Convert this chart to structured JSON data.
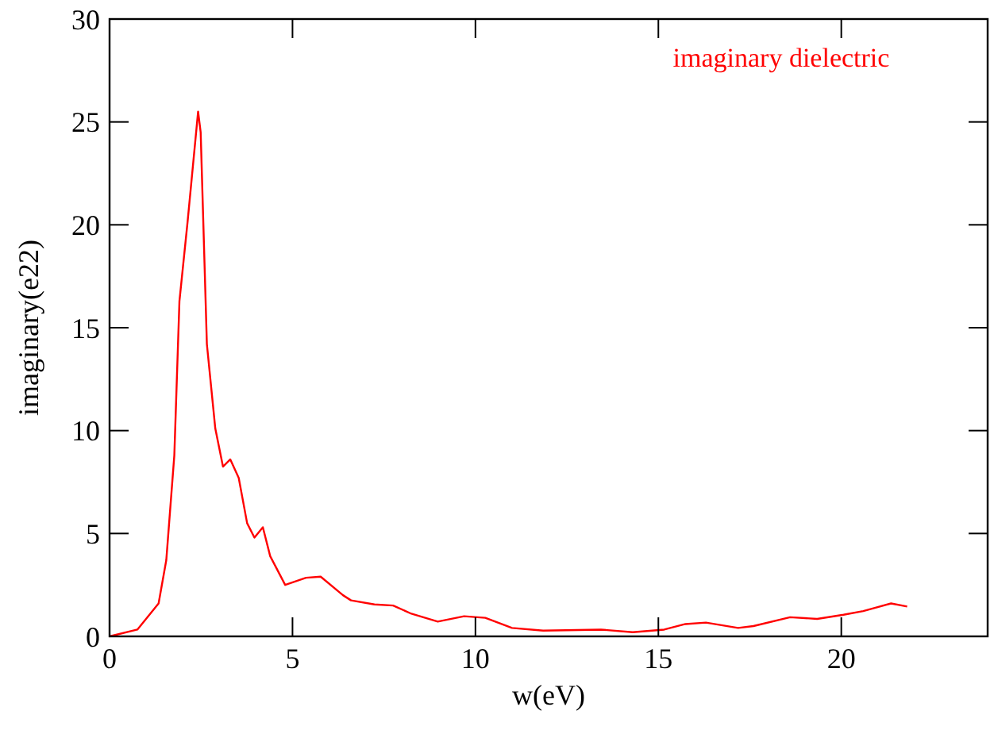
{
  "chart_data": {
    "type": "line",
    "xlabel": "w(eV)",
    "ylabel": "imaginary(e22)",
    "legend": "top right",
    "xlim": [
      0,
      24
    ],
    "xticks": [
      0,
      5,
      10,
      15,
      20
    ],
    "ylim": [
      0,
      30
    ],
    "yticks": [
      0,
      5,
      10,
      15,
      20,
      25,
      30
    ],
    "grid": false,
    "marker": "none",
    "line_style": "solid",
    "series": [
      {
        "name": "imaginary dielectric",
        "color": "#ff0000",
        "x": [
          0,
          0.76,
          1.34,
          1.55,
          1.77,
          1.91,
          2.13,
          2.42,
          2.49,
          2.66,
          2.89,
          3.1,
          3.3,
          3.53,
          3.76,
          3.96,
          4.19,
          4.39,
          4.8,
          5.37,
          5.77,
          6.38,
          6.6,
          7.24,
          7.75,
          8.25,
          8.97,
          9.69,
          10.27,
          11.0,
          11.85,
          13.43,
          14.3,
          15.16,
          15.74,
          16.3,
          17.18,
          17.6,
          18.6,
          19.34,
          20.06,
          20.6,
          21.36,
          21.8
        ],
        "values": [
          0,
          0.33,
          1.6,
          3.7,
          8.8,
          16.3,
          20.1,
          25.5,
          24.5,
          14.2,
          10.1,
          8.25,
          8.6,
          7.7,
          5.5,
          4.8,
          5.3,
          3.9,
          2.5,
          2.85,
          2.9,
          2.0,
          1.75,
          1.55,
          1.5,
          1.1,
          0.72,
          0.98,
          0.9,
          0.41,
          0.28,
          0.33,
          0.2,
          0.33,
          0.6,
          0.67,
          0.41,
          0.5,
          0.93,
          0.85,
          1.05,
          1.23,
          1.6,
          1.45
        ]
      }
    ]
  }
}
